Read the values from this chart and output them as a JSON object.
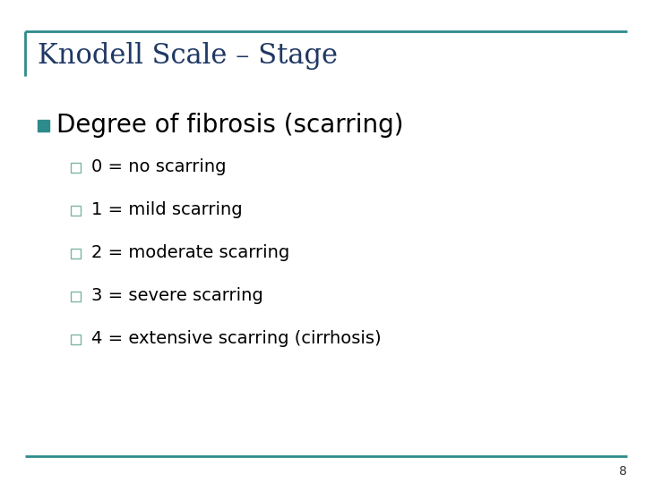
{
  "title": "Knodell Scale – Stage",
  "title_color": "#1F3864",
  "title_fontsize": 22,
  "title_font": "DejaVu Serif",
  "bg_color": "#FFFFFF",
  "border_color": "#2E8B8B",
  "bullet_main_text": "Degree of fibrosis (scarring)",
  "bullet_main_color": "#000000",
  "bullet_main_fontsize": 20,
  "bullet_main_marker_color": "#2E8B8B",
  "sub_bullets": [
    "0 = no scarring",
    "1 = mild scarring",
    "2 = moderate scarring",
    "3 = severe scarring",
    "4 = extensive scarring (cirrhosis)"
  ],
  "sub_bullet_fontsize": 14,
  "sub_bullet_color": "#000000",
  "sub_bullet_marker_color": "#7FB5A0",
  "page_number": "8",
  "page_number_fontsize": 10,
  "page_number_color": "#333333"
}
